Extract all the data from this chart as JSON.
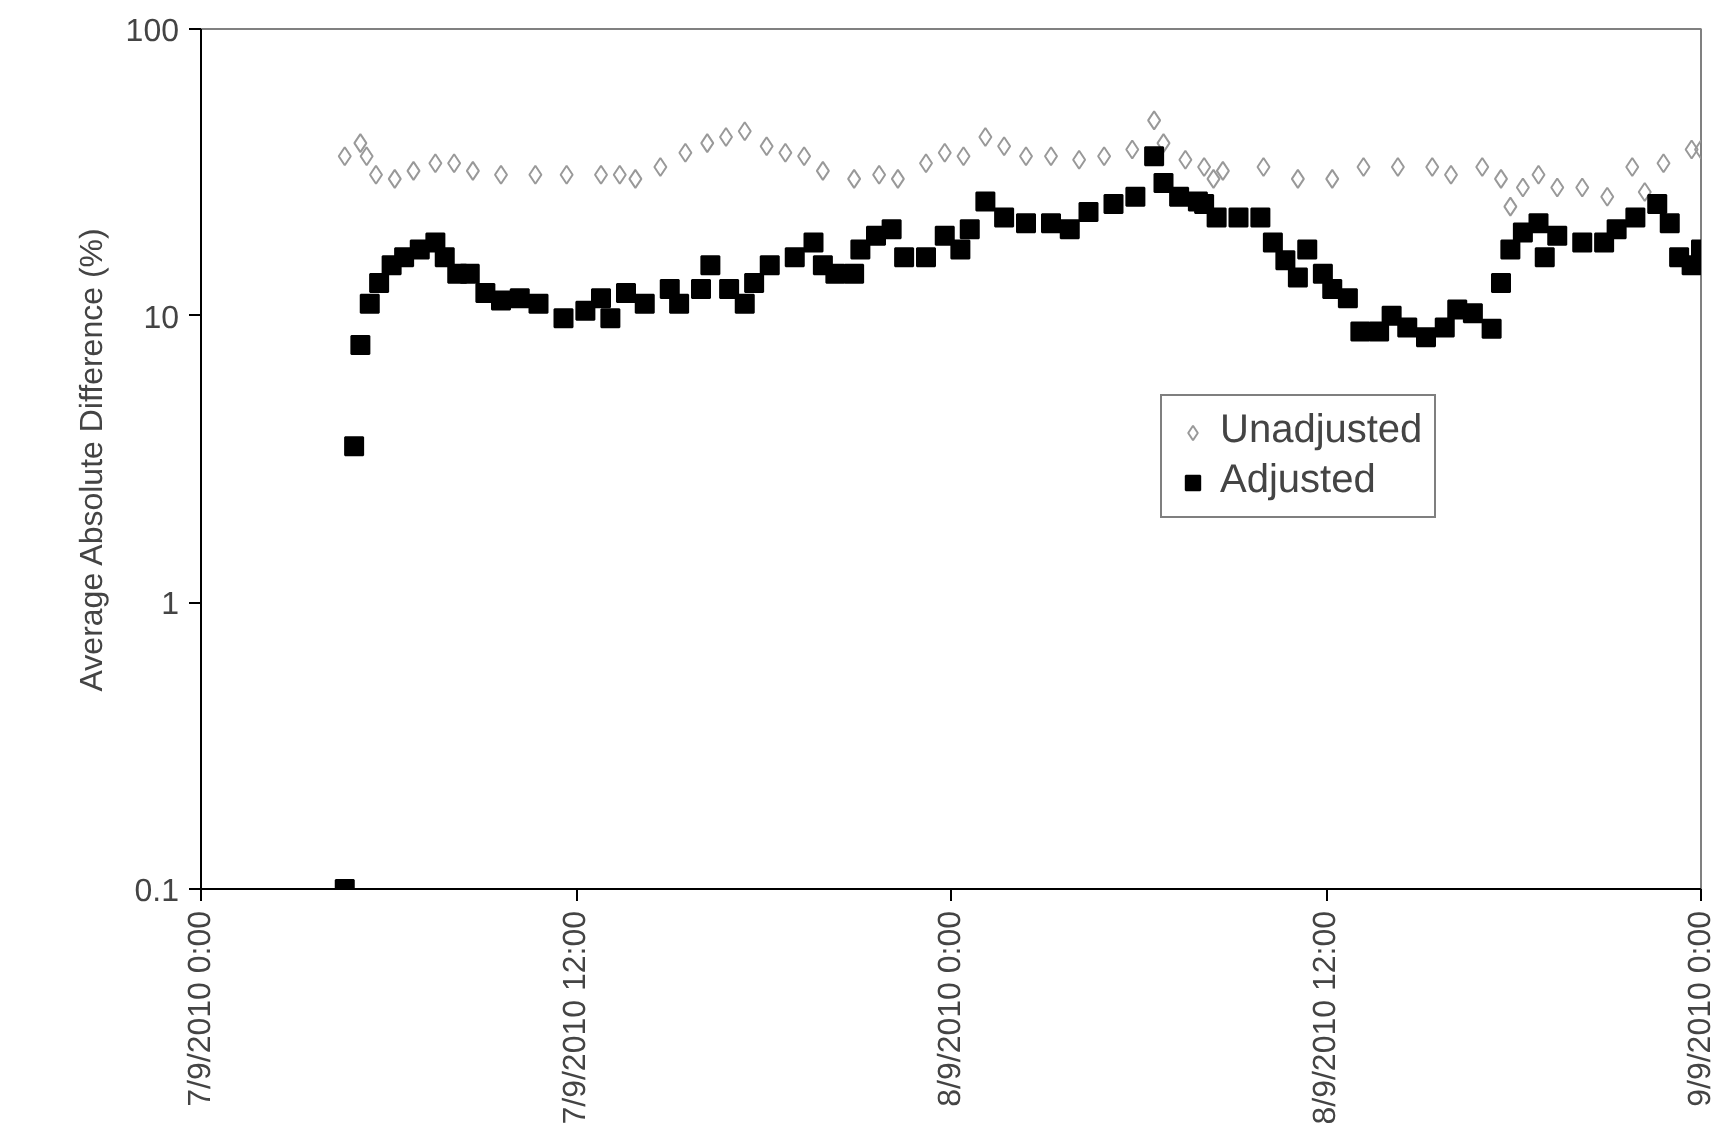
{
  "chart_data": {
    "type": "scatter",
    "ylabel": "Average Absolute Difference (%)",
    "log": "y",
    "grid": false,
    "legend": "right",
    "xlim": [
      "2010-09-07T00:00",
      "2010-09-09T00:00"
    ],
    "xticks": [
      {
        "value": "2010-09-07T00:00",
        "label": "7/9/2010 0:00"
      },
      {
        "value": "2010-09-07T12:00",
        "label": "7/9/2010 12:00"
      },
      {
        "value": "2010-09-08T00:00",
        "label": "8/9/2010 0:00"
      },
      {
        "value": "2010-09-08T12:00",
        "label": "8/9/2010 12:00"
      },
      {
        "value": "2010-09-09T00:00",
        "label": "9/9/2010 0:00"
      }
    ],
    "ylim": [
      0.1,
      100
    ],
    "yticks": [
      {
        "value": 0.1,
        "label": "0.1"
      },
      1,
      10,
      100
    ],
    "series": [
      {
        "name": "Unadjusted",
        "color": "#999999",
        "marker": "diamond",
        "x": [
          "2010-09-07T04:36",
          "2010-09-07T05:06",
          "2010-09-07T05:18",
          "2010-09-07T05:36",
          "2010-09-07T06:12",
          "2010-09-07T06:48",
          "2010-09-07T07:30",
          "2010-09-07T08:06",
          "2010-09-07T08:42",
          "2010-09-07T09:36",
          "2010-09-07T10:42",
          "2010-09-07T11:42",
          "2010-09-07T12:48",
          "2010-09-07T13:24",
          "2010-09-07T13:54",
          "2010-09-07T14:42",
          "2010-09-07T15:30",
          "2010-09-07T16:12",
          "2010-09-07T16:48",
          "2010-09-07T17:24",
          "2010-09-07T18:06",
          "2010-09-07T18:42",
          "2010-09-07T19:18",
          "2010-09-07T19:54",
          "2010-09-07T20:54",
          "2010-09-07T21:42",
          "2010-09-07T22:18",
          "2010-09-07T23:12",
          "2010-09-07T23:48",
          "2010-09-08T00:24",
          "2010-09-08T01:06",
          "2010-09-08T01:42",
          "2010-09-08T02:24",
          "2010-09-08T03:12",
          "2010-09-08T04:06",
          "2010-09-08T04:54",
          "2010-09-08T05:48",
          "2010-09-08T06:30",
          "2010-09-08T06:48",
          "2010-09-08T07:30",
          "2010-09-08T08:06",
          "2010-09-08T08:24",
          "2010-09-08T08:42",
          "2010-09-08T10:00",
          "2010-09-08T11:06",
          "2010-09-08T12:12",
          "2010-09-08T13:12",
          "2010-09-08T14:18",
          "2010-09-08T15:24",
          "2010-09-08T16:00",
          "2010-09-08T17:00",
          "2010-09-08T17:36",
          "2010-09-08T17:54",
          "2010-09-08T18:18",
          "2010-09-08T18:48",
          "2010-09-08T19:24",
          "2010-09-08T20:12",
          "2010-09-08T21:00",
          "2010-09-08T21:48",
          "2010-09-08T22:12",
          "2010-09-08T22:48",
          "2010-09-08T23:42",
          "2010-09-09T00:00"
        ],
        "values": [
          36,
          40,
          36,
          31,
          30,
          32,
          34,
          34,
          32,
          31,
          31,
          31,
          31,
          31,
          30,
          33,
          37,
          40,
          42,
          44,
          39,
          37,
          36,
          32,
          30,
          31,
          30,
          34,
          37,
          36,
          42,
          39,
          36,
          36,
          35,
          36,
          38,
          48,
          40,
          35,
          33,
          30,
          32,
          33,
          30,
          30,
          33,
          33,
          33,
          31,
          33,
          30,
          24,
          28,
          31,
          28,
          28,
          26,
          33,
          27,
          34,
          38,
          38
        ]
      },
      {
        "name": "Adjusted",
        "color": "#000000",
        "marker": "square",
        "x": [
          "2010-09-07T04:36",
          "2010-09-07T04:54",
          "2010-09-07T05:06",
          "2010-09-07T05:24",
          "2010-09-07T05:42",
          "2010-09-07T06:06",
          "2010-09-07T06:30",
          "2010-09-07T07:00",
          "2010-09-07T07:30",
          "2010-09-07T07:48",
          "2010-09-07T08:12",
          "2010-09-07T08:36",
          "2010-09-07T09:06",
          "2010-09-07T09:36",
          "2010-09-07T10:12",
          "2010-09-07T10:48",
          "2010-09-07T11:36",
          "2010-09-07T12:18",
          "2010-09-07T12:48",
          "2010-09-07T13:06",
          "2010-09-07T13:36",
          "2010-09-07T14:12",
          "2010-09-07T15:00",
          "2010-09-07T15:18",
          "2010-09-07T16:00",
          "2010-09-07T16:18",
          "2010-09-07T16:54",
          "2010-09-07T17:24",
          "2010-09-07T17:42",
          "2010-09-07T18:12",
          "2010-09-07T19:00",
          "2010-09-07T19:36",
          "2010-09-07T19:54",
          "2010-09-07T20:18",
          "2010-09-07T20:54",
          "2010-09-07T21:06",
          "2010-09-07T21:36",
          "2010-09-07T22:06",
          "2010-09-07T22:30",
          "2010-09-07T23:12",
          "2010-09-07T23:48",
          "2010-09-08T00:18",
          "2010-09-08T00:36",
          "2010-09-08T01:06",
          "2010-09-08T01:42",
          "2010-09-08T02:24",
          "2010-09-08T03:12",
          "2010-09-08T03:48",
          "2010-09-08T04:24",
          "2010-09-08T05:12",
          "2010-09-08T05:54",
          "2010-09-08T06:30",
          "2010-09-08T06:48",
          "2010-09-08T07:18",
          "2010-09-08T07:54",
          "2010-09-08T08:06",
          "2010-09-08T08:30",
          "2010-09-08T09:12",
          "2010-09-08T09:54",
          "2010-09-08T10:18",
          "2010-09-08T10:42",
          "2010-09-08T11:06",
          "2010-09-08T11:24",
          "2010-09-08T11:54",
          "2010-09-08T12:12",
          "2010-09-08T12:42",
          "2010-09-08T13:06",
          "2010-09-08T13:42",
          "2010-09-08T14:06",
          "2010-09-08T14:36",
          "2010-09-08T15:12",
          "2010-09-08T15:48",
          "2010-09-08T16:12",
          "2010-09-08T16:42",
          "2010-09-08T17:18",
          "2010-09-08T17:36",
          "2010-09-08T17:54",
          "2010-09-08T18:18",
          "2010-09-08T18:48",
          "2010-09-08T19:00",
          "2010-09-08T19:24",
          "2010-09-08T20:12",
          "2010-09-08T20:54",
          "2010-09-08T21:18",
          "2010-09-08T21:54",
          "2010-09-08T22:36",
          "2010-09-08T23:00",
          "2010-09-08T23:18",
          "2010-09-08T23:42",
          "2010-09-09T00:00"
        ],
        "values": [
          0.1,
          3.5,
          7.9,
          11,
          13,
          15,
          16,
          17,
          18,
          16,
          14,
          14,
          12,
          11.3,
          11.5,
          11,
          9.8,
          10.4,
          11.5,
          9.8,
          12,
          11,
          12.4,
          11,
          12.4,
          15,
          12.4,
          11,
          13,
          15,
          16,
          18,
          15,
          14,
          14,
          17,
          19,
          20,
          16,
          16,
          19,
          17,
          20,
          25,
          22,
          21,
          21,
          20,
          23,
          24.5,
          26,
          36,
          29,
          26,
          25,
          24.5,
          22,
          22,
          22,
          18,
          15.6,
          13.6,
          17,
          14,
          12.4,
          11.5,
          8.8,
          8.8,
          10,
          9.1,
          8.4,
          9.1,
          10.5,
          10.2,
          9,
          13,
          17,
          19.5,
          21,
          16,
          19,
          18,
          18,
          20,
          22,
          24.5,
          21,
          16,
          15,
          17
        ]
      }
    ]
  }
}
